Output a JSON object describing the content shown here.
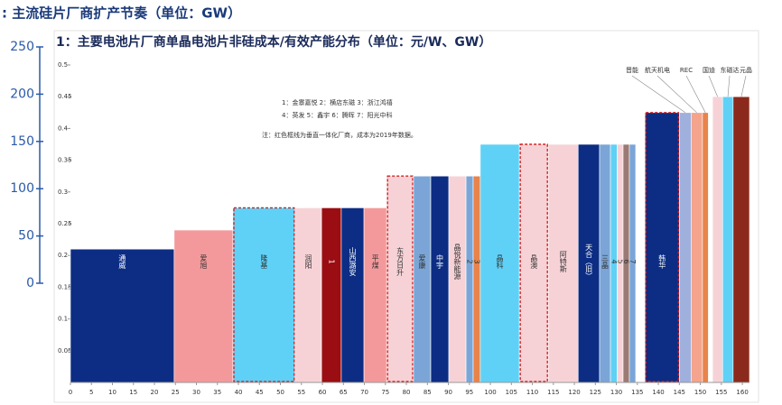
{
  "chart_data": [
    {
      "type": "axis",
      "title": ": 主流硅片厂商扩产节奏（单位：GW）",
      "ylim": [
        0,
        250
      ],
      "yticks": [
        0,
        50,
        100,
        150,
        200,
        250
      ]
    },
    {
      "type": "marimekko",
      "title": "1：主要电池片厂商单晶电池片非硅成本/有效产能分布（单位：元/W、GW）",
      "notes": [
        "1：金寨嘉悦 2：横店东磁 3：浙江鸿禧",
        "4：英发 5：鑫宇 6：腾晖 7：阳光中科",
        "注：红色框线为垂直一体化厂商，成本为2019年数据。"
      ],
      "categories": [
        "通威",
        "爱旭",
        "隆基",
        "润阳",
        "1",
        "山西潞安",
        "平煤",
        "东方日升",
        "爱康",
        "中宇",
        "晶悦新能源",
        "2",
        "3",
        "晶科",
        "晶澳",
        "阿特斯",
        "天合（旧）",
        "三晶",
        "4",
        "5",
        "6",
        "7",
        "韩华",
        null,
        null,
        null,
        null,
        null,
        null
      ],
      "top_labels": [
        "晋能",
        "航天机电",
        "REC",
        "国迪",
        "东磁达",
        "元晶"
      ],
      "x0": [
        0,
        24.7,
        38.7,
        53.5,
        59.8,
        64.5,
        69.9,
        75.3,
        81.7,
        85.8,
        90.1,
        94.2,
        95.9,
        97.6,
        106.9,
        113.8,
        120.9,
        126.0,
        128.6,
        130.2,
        131.6,
        133.1,
        136.8,
        145.0,
        147.8,
        150.5,
        152.9,
        155.3,
        157.8
      ],
      "x1": [
        24.7,
        38.7,
        53.5,
        59.8,
        64.5,
        69.9,
        75.3,
        81.7,
        85.8,
        90.1,
        94.2,
        95.9,
        97.6,
        106.9,
        113.8,
        120.9,
        126.0,
        128.6,
        130.2,
        131.6,
        133.1,
        134.6,
        145.0,
        147.8,
        150.5,
        151.9,
        155.3,
        157.8,
        161.7
      ],
      "values": [
        0.21,
        0.24,
        0.275,
        0.275,
        0.275,
        0.275,
        0.275,
        0.325,
        0.325,
        0.325,
        0.325,
        0.325,
        0.325,
        0.375,
        0.375,
        0.375,
        0.375,
        0.375,
        0.375,
        0.375,
        0.375,
        0.375,
        0.425,
        0.425,
        0.425,
        0.425,
        0.45,
        0.45,
        0.45
      ],
      "colors": [
        "#0c2d83",
        "#f4999b",
        "#5fd1f6",
        "#f6d2d6",
        "#9a0d12",
        "#0c2d83",
        "#f4999b",
        "#f6d2d6",
        "#7ba5d6",
        "#0c2d83",
        "#f6d2d6",
        "#7ba5d6",
        "#e8834a",
        "#5fd1f6",
        "#f6d2d6",
        "#f6d2d6",
        "#0c2d83",
        "#7ba5d6",
        "#5fd1f6",
        "#f6d2d6",
        "#9a7a74",
        "#7ba5d6",
        "#0c2d83",
        "#9fb0dc",
        "#f4a48d",
        "#e8834a",
        "#f6d2d6",
        "#5fd1f6",
        "#8b2a1c"
      ],
      "integrated": [
        false,
        false,
        true,
        false,
        false,
        false,
        false,
        true,
        false,
        false,
        false,
        false,
        false,
        false,
        true,
        false,
        false,
        false,
        false,
        false,
        false,
        false,
        true,
        false,
        false,
        false,
        false,
        false,
        false
      ],
      "xlim": [
        0,
        161.7
      ],
      "xticks": [
        0,
        5,
        10,
        15,
        20,
        25,
        30,
        35,
        40,
        45,
        50,
        55,
        60,
        65,
        70,
        75,
        80,
        85,
        90,
        95,
        100,
        105,
        110,
        115,
        120,
        125,
        130,
        135,
        140,
        145,
        150,
        155,
        160
      ],
      "ylim": [
        0,
        0.5
      ],
      "yticks": [
        0.05,
        0.1,
        0.15,
        0.2,
        0.25,
        0.3,
        0.35,
        0.4,
        0.45,
        0.5
      ]
    }
  ]
}
